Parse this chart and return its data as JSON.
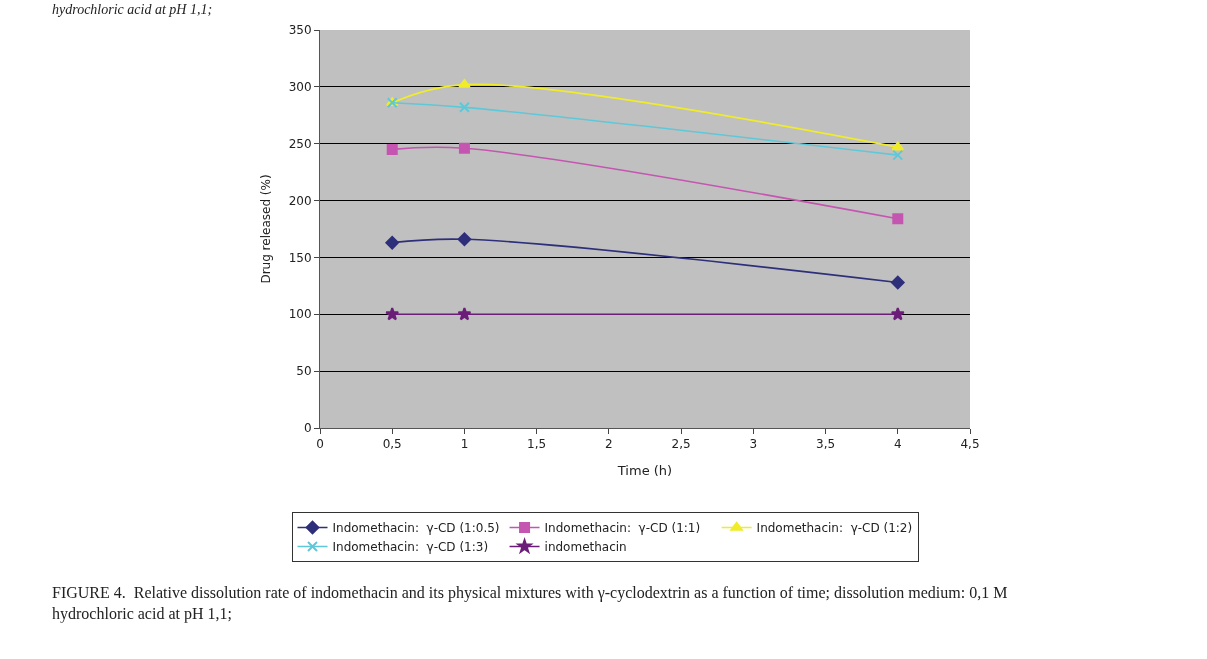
{
  "chart_data": {
    "type": "line",
    "xlabel": "Time (h)",
    "ylabel": "Drug released (%)",
    "x": [
      0.5,
      1,
      4
    ],
    "series": [
      {
        "name": "Indomethacin:  γ-CD (1:0.5)",
        "color": "#2e2f7a",
        "marker": "diamond",
        "values": [
          163,
          166,
          128
        ]
      },
      {
        "name": "Indomethacin:  γ-CD (1:1)",
        "color": "#c455b0",
        "marker": "square",
        "values": [
          245,
          246,
          184
        ]
      },
      {
        "name": "Indomethacin:  γ-CD (1:2)",
        "color": "#f0ec2a",
        "marker": "triangle",
        "values": [
          286,
          302,
          247
        ]
      },
      {
        "name": "Indomethacin:  γ-CD (1:3)",
        "color": "#5ec8d8",
        "marker": "cross",
        "values": [
          286,
          282,
          240
        ]
      },
      {
        "name": "indomethacin",
        "color": "#6b1e78",
        "marker": "star",
        "values": [
          100,
          100,
          100
        ]
      }
    ],
    "xlim": [
      0,
      4.5
    ],
    "xticks": [
      0,
      {
        "value": 0.5,
        "label": "0,5"
      },
      1,
      {
        "value": 1.5,
        "label": "1,5"
      },
      2,
      {
        "value": 2.5,
        "label": "2,5"
      },
      3,
      {
        "value": 3.5,
        "label": "3,5"
      },
      4,
      {
        "value": 4.5,
        "label": "4,5"
      }
    ],
    "ylim": [
      0,
      350
    ],
    "yticks": [
      0,
      50,
      100,
      150,
      200,
      250,
      300,
      350
    ],
    "grid": "y",
    "legend": "bottom",
    "annotations": [
      "hydrochloric acid at pH 1,1;",
      "FIGURE 4.  Relative dissolution rate of indomethacin and its physical mixtures with γ-cyclodextrin as a function of time; dissolution medium: 0,1 M  hydrochloric acid at pH 1,1;"
    ]
  }
}
